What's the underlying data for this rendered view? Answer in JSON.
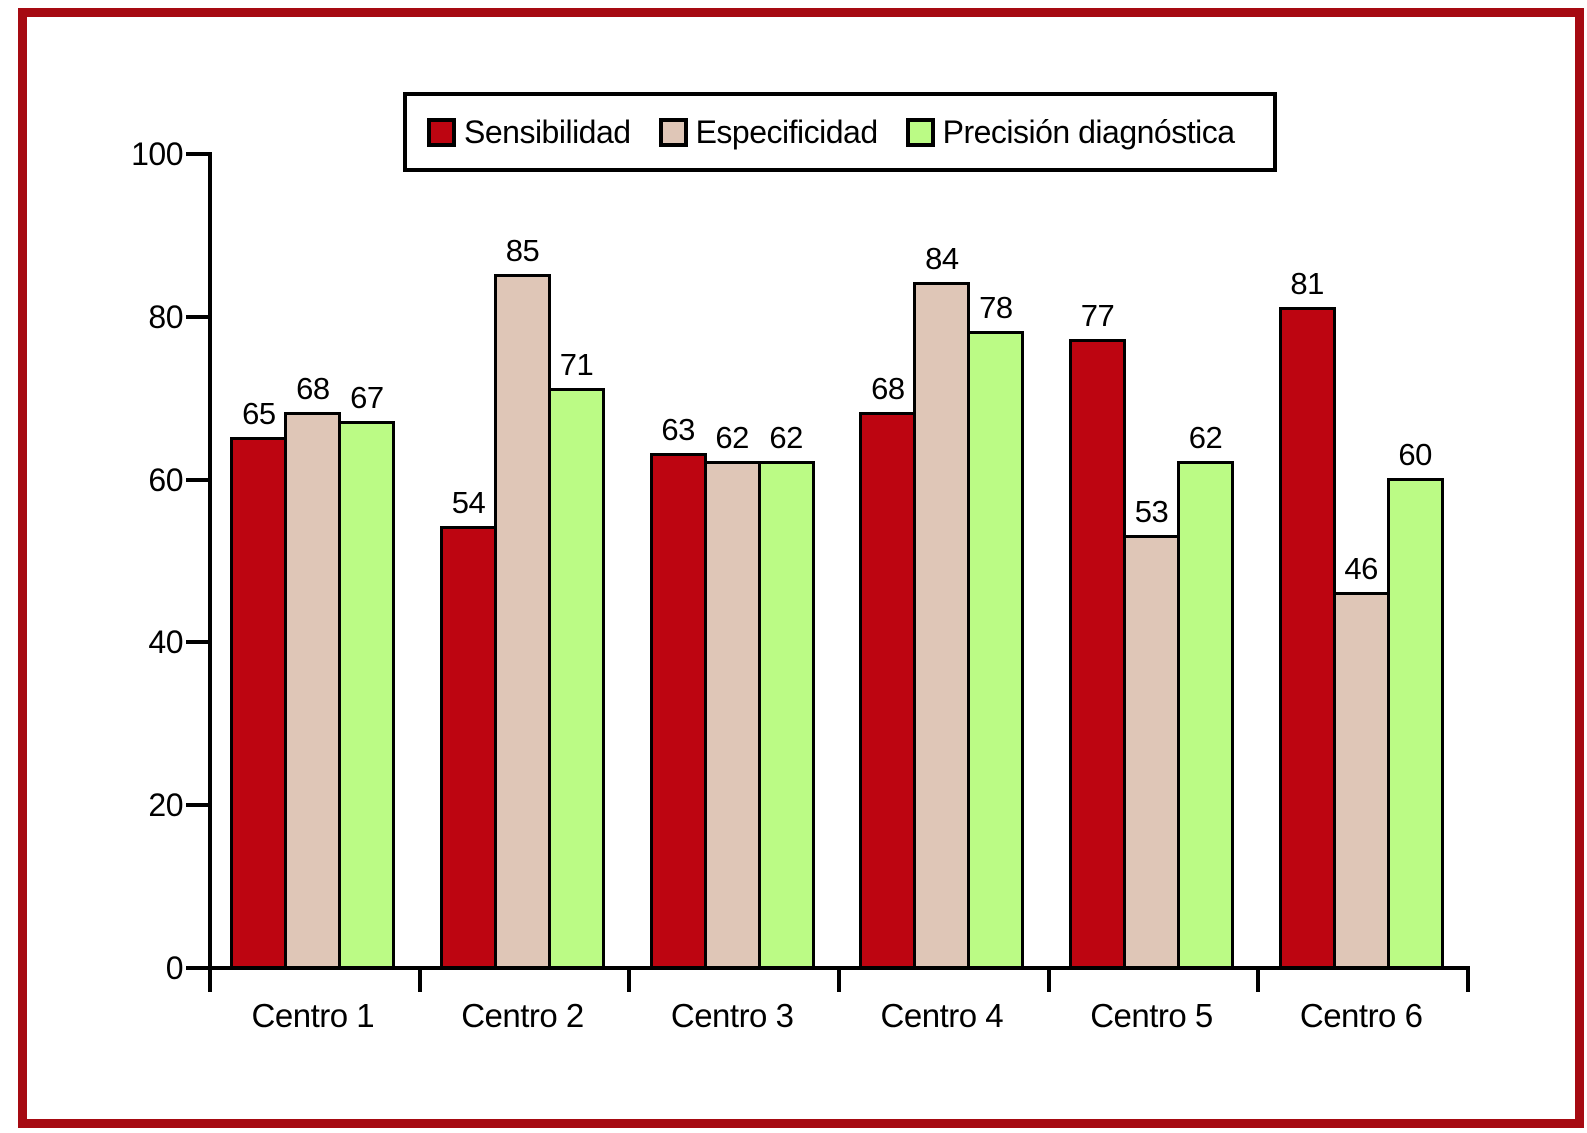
{
  "frame_color": "#a60a12",
  "chart_data": {
    "type": "bar",
    "title": "",
    "categories": [
      "Centro 1",
      "Centro 2",
      "Centro 3",
      "Centro 4",
      "Centro 5",
      "Centro 6"
    ],
    "series": [
      {
        "name": "Sensibilidad",
        "color": "#bd0511",
        "values": [
          65,
          54,
          63,
          68,
          77,
          81
        ]
      },
      {
        "name": "Especificidad",
        "color": "#dfc6b7",
        "values": [
          68,
          85,
          62,
          84,
          53,
          46
        ]
      },
      {
        "name": "Precisión diagnóstica",
        "color": "#bbfb85",
        "values": [
          67,
          71,
          62,
          78,
          62,
          60
        ]
      }
    ],
    "xlabel": "",
    "ylabel": "",
    "ylim": [
      0,
      100
    ],
    "yticks": [
      0,
      20,
      40,
      60,
      80,
      100
    ],
    "grid": false,
    "legend_position": "top",
    "bar_value_labels": true,
    "axis_color": "#000000",
    "text_color": "#000000"
  }
}
